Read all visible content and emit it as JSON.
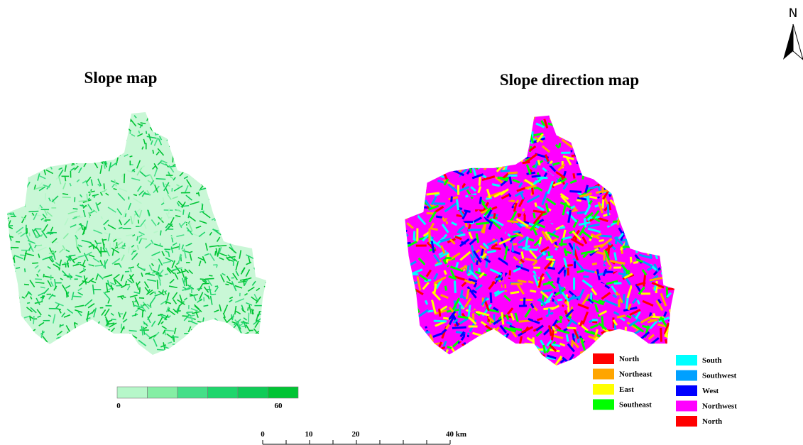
{
  "north_arrow": "N",
  "slope_map": {
    "title": "Slope map",
    "colorbar": {
      "colors": [
        "#b6f7c9",
        "#85eea4",
        "#45df88",
        "#1fd66c",
        "#0fcc57",
        "#00c434"
      ],
      "labels": [
        "0",
        "60"
      ]
    }
  },
  "direction_map": {
    "title": "Slope direction map",
    "legend": [
      {
        "label": "North",
        "color": "#ff0000"
      },
      {
        "label": "Northeast",
        "color": "#ffa500"
      },
      {
        "label": "East",
        "color": "#ffff00"
      },
      {
        "label": "Southeast",
        "color": "#00ff00"
      },
      {
        "label": "South",
        "color": "#00ffff"
      },
      {
        "label": "Southwest",
        "color": "#00a0ff"
      },
      {
        "label": "West",
        "color": "#0000ff"
      },
      {
        "label": "Northwest",
        "color": "#ff00ff"
      },
      {
        "label": "North",
        "color": "#ff0000"
      }
    ]
  },
  "scale_bar": {
    "labels": [
      "0",
      "10",
      "20",
      "40 km"
    ]
  }
}
